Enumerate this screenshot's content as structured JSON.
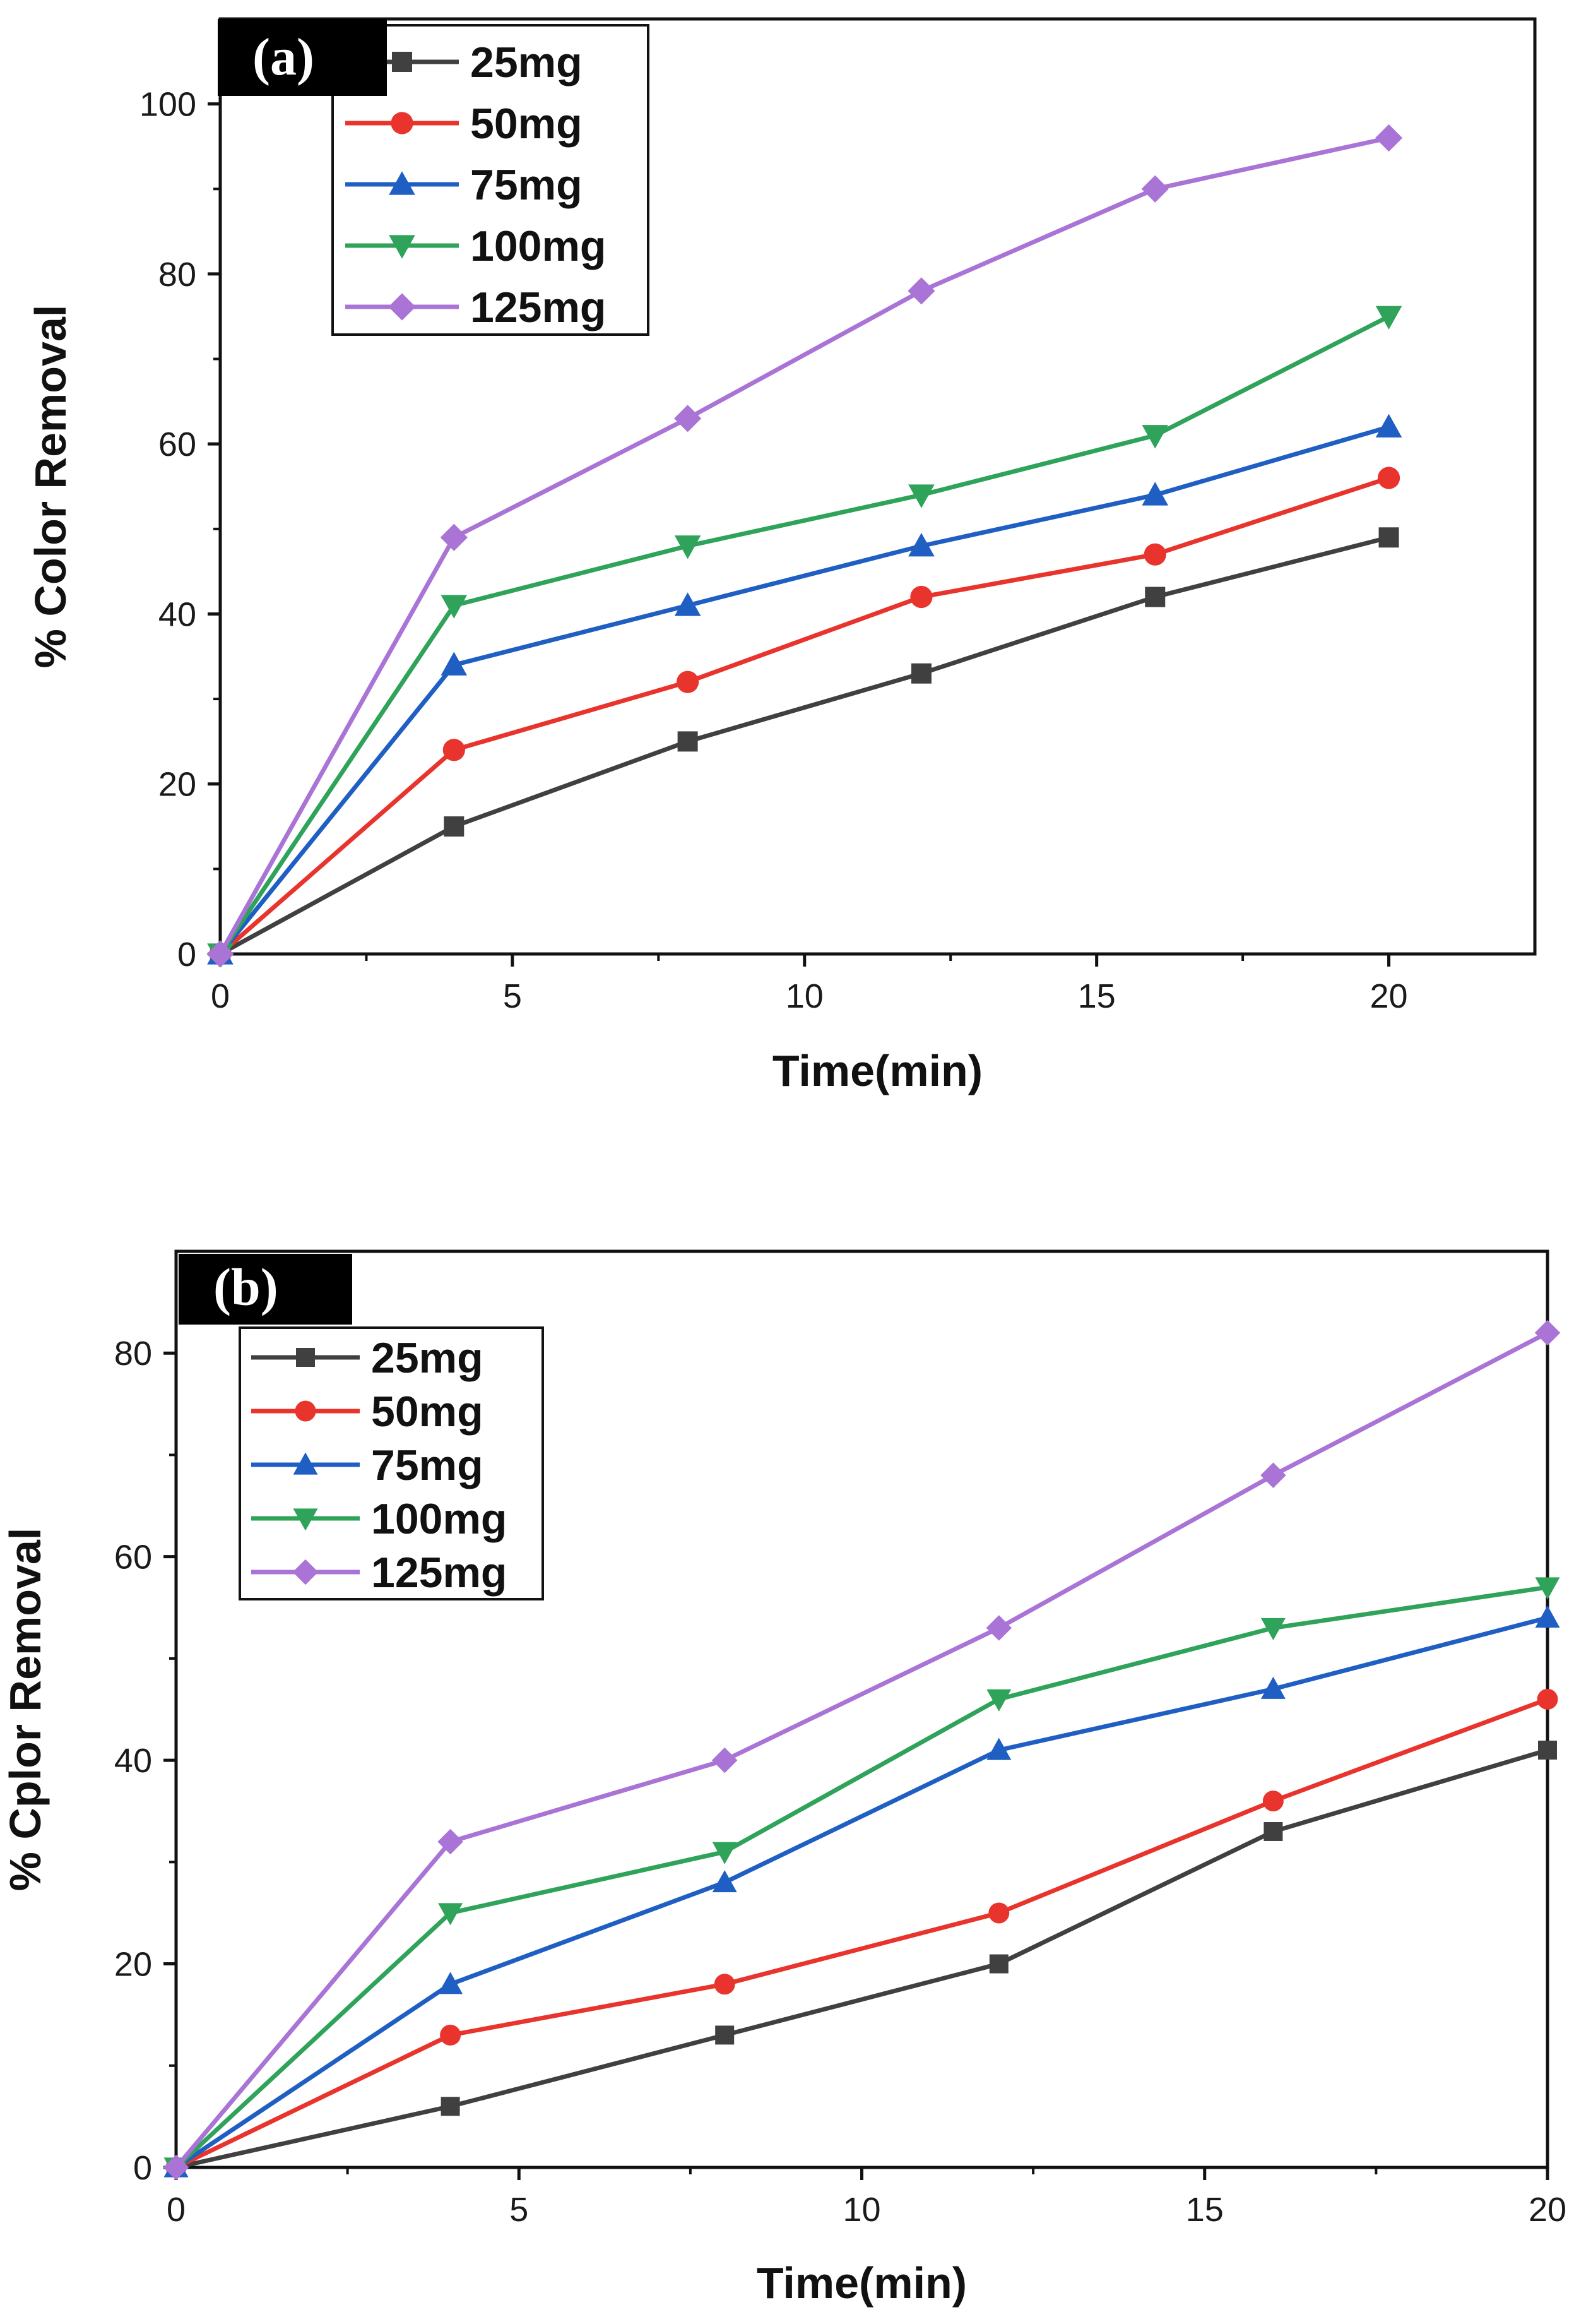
{
  "chart_data": [
    {
      "type": "line",
      "panel_label": "(a)",
      "xlabel": "Time(min)",
      "ylabel": "% Color Removal",
      "xlim": [
        0,
        22.5
      ],
      "ylim": [
        0,
        110
      ],
      "xticks": [
        0,
        5,
        10,
        15,
        20
      ],
      "yticks": [
        0,
        20,
        40,
        60,
        80,
        100
      ],
      "x": [
        0,
        4,
        8,
        12,
        16,
        20
      ],
      "legend_position": "top-left",
      "series": [
        {
          "name": "25mg",
          "color": "#404040",
          "marker": "square",
          "values": [
            0,
            15,
            25,
            33,
            42,
            49
          ]
        },
        {
          "name": "50mg",
          "color": "#e8342c",
          "marker": "circle",
          "values": [
            0,
            24,
            32,
            42,
            47,
            56
          ]
        },
        {
          "name": "75mg",
          "color": "#1f5fc4",
          "marker": "triangle-up",
          "values": [
            0,
            34,
            41,
            48,
            54,
            62
          ]
        },
        {
          "name": "100mg",
          "color": "#2fa35a",
          "marker": "triangle-down",
          "values": [
            0,
            41,
            48,
            54,
            61,
            75
          ]
        },
        {
          "name": "125mg",
          "color": "#a974d6",
          "marker": "diamond",
          "values": [
            0,
            49,
            63,
            78,
            90,
            96
          ]
        }
      ]
    },
    {
      "type": "line",
      "panel_label": "(b)",
      "xlabel": "Time(min)",
      "ylabel": "% Cplor Removal",
      "xlim": [
        0,
        20
      ],
      "ylim": [
        0,
        90
      ],
      "xticks": [
        0,
        5,
        10,
        15,
        20
      ],
      "yticks": [
        0,
        20,
        40,
        60,
        80
      ],
      "x": [
        0,
        4,
        8,
        12,
        16,
        20
      ],
      "legend_position": "top-left",
      "series": [
        {
          "name": "25mg",
          "color": "#404040",
          "marker": "square",
          "values": [
            0,
            6,
            13,
            20,
            33,
            41
          ]
        },
        {
          "name": "50mg",
          "color": "#e8342c",
          "marker": "circle",
          "values": [
            0,
            13,
            18,
            25,
            36,
            46
          ]
        },
        {
          "name": "75mg",
          "color": "#1f5fc4",
          "marker": "triangle-up",
          "values": [
            0,
            18,
            28,
            41,
            47,
            54
          ]
        },
        {
          "name": "100mg",
          "color": "#2fa35a",
          "marker": "triangle-down",
          "values": [
            0,
            25,
            31,
            46,
            53,
            57
          ]
        },
        {
          "name": "125mg",
          "color": "#a974d6",
          "marker": "diamond",
          "values": [
            0,
            32,
            40,
            53,
            68,
            82
          ]
        }
      ]
    }
  ]
}
